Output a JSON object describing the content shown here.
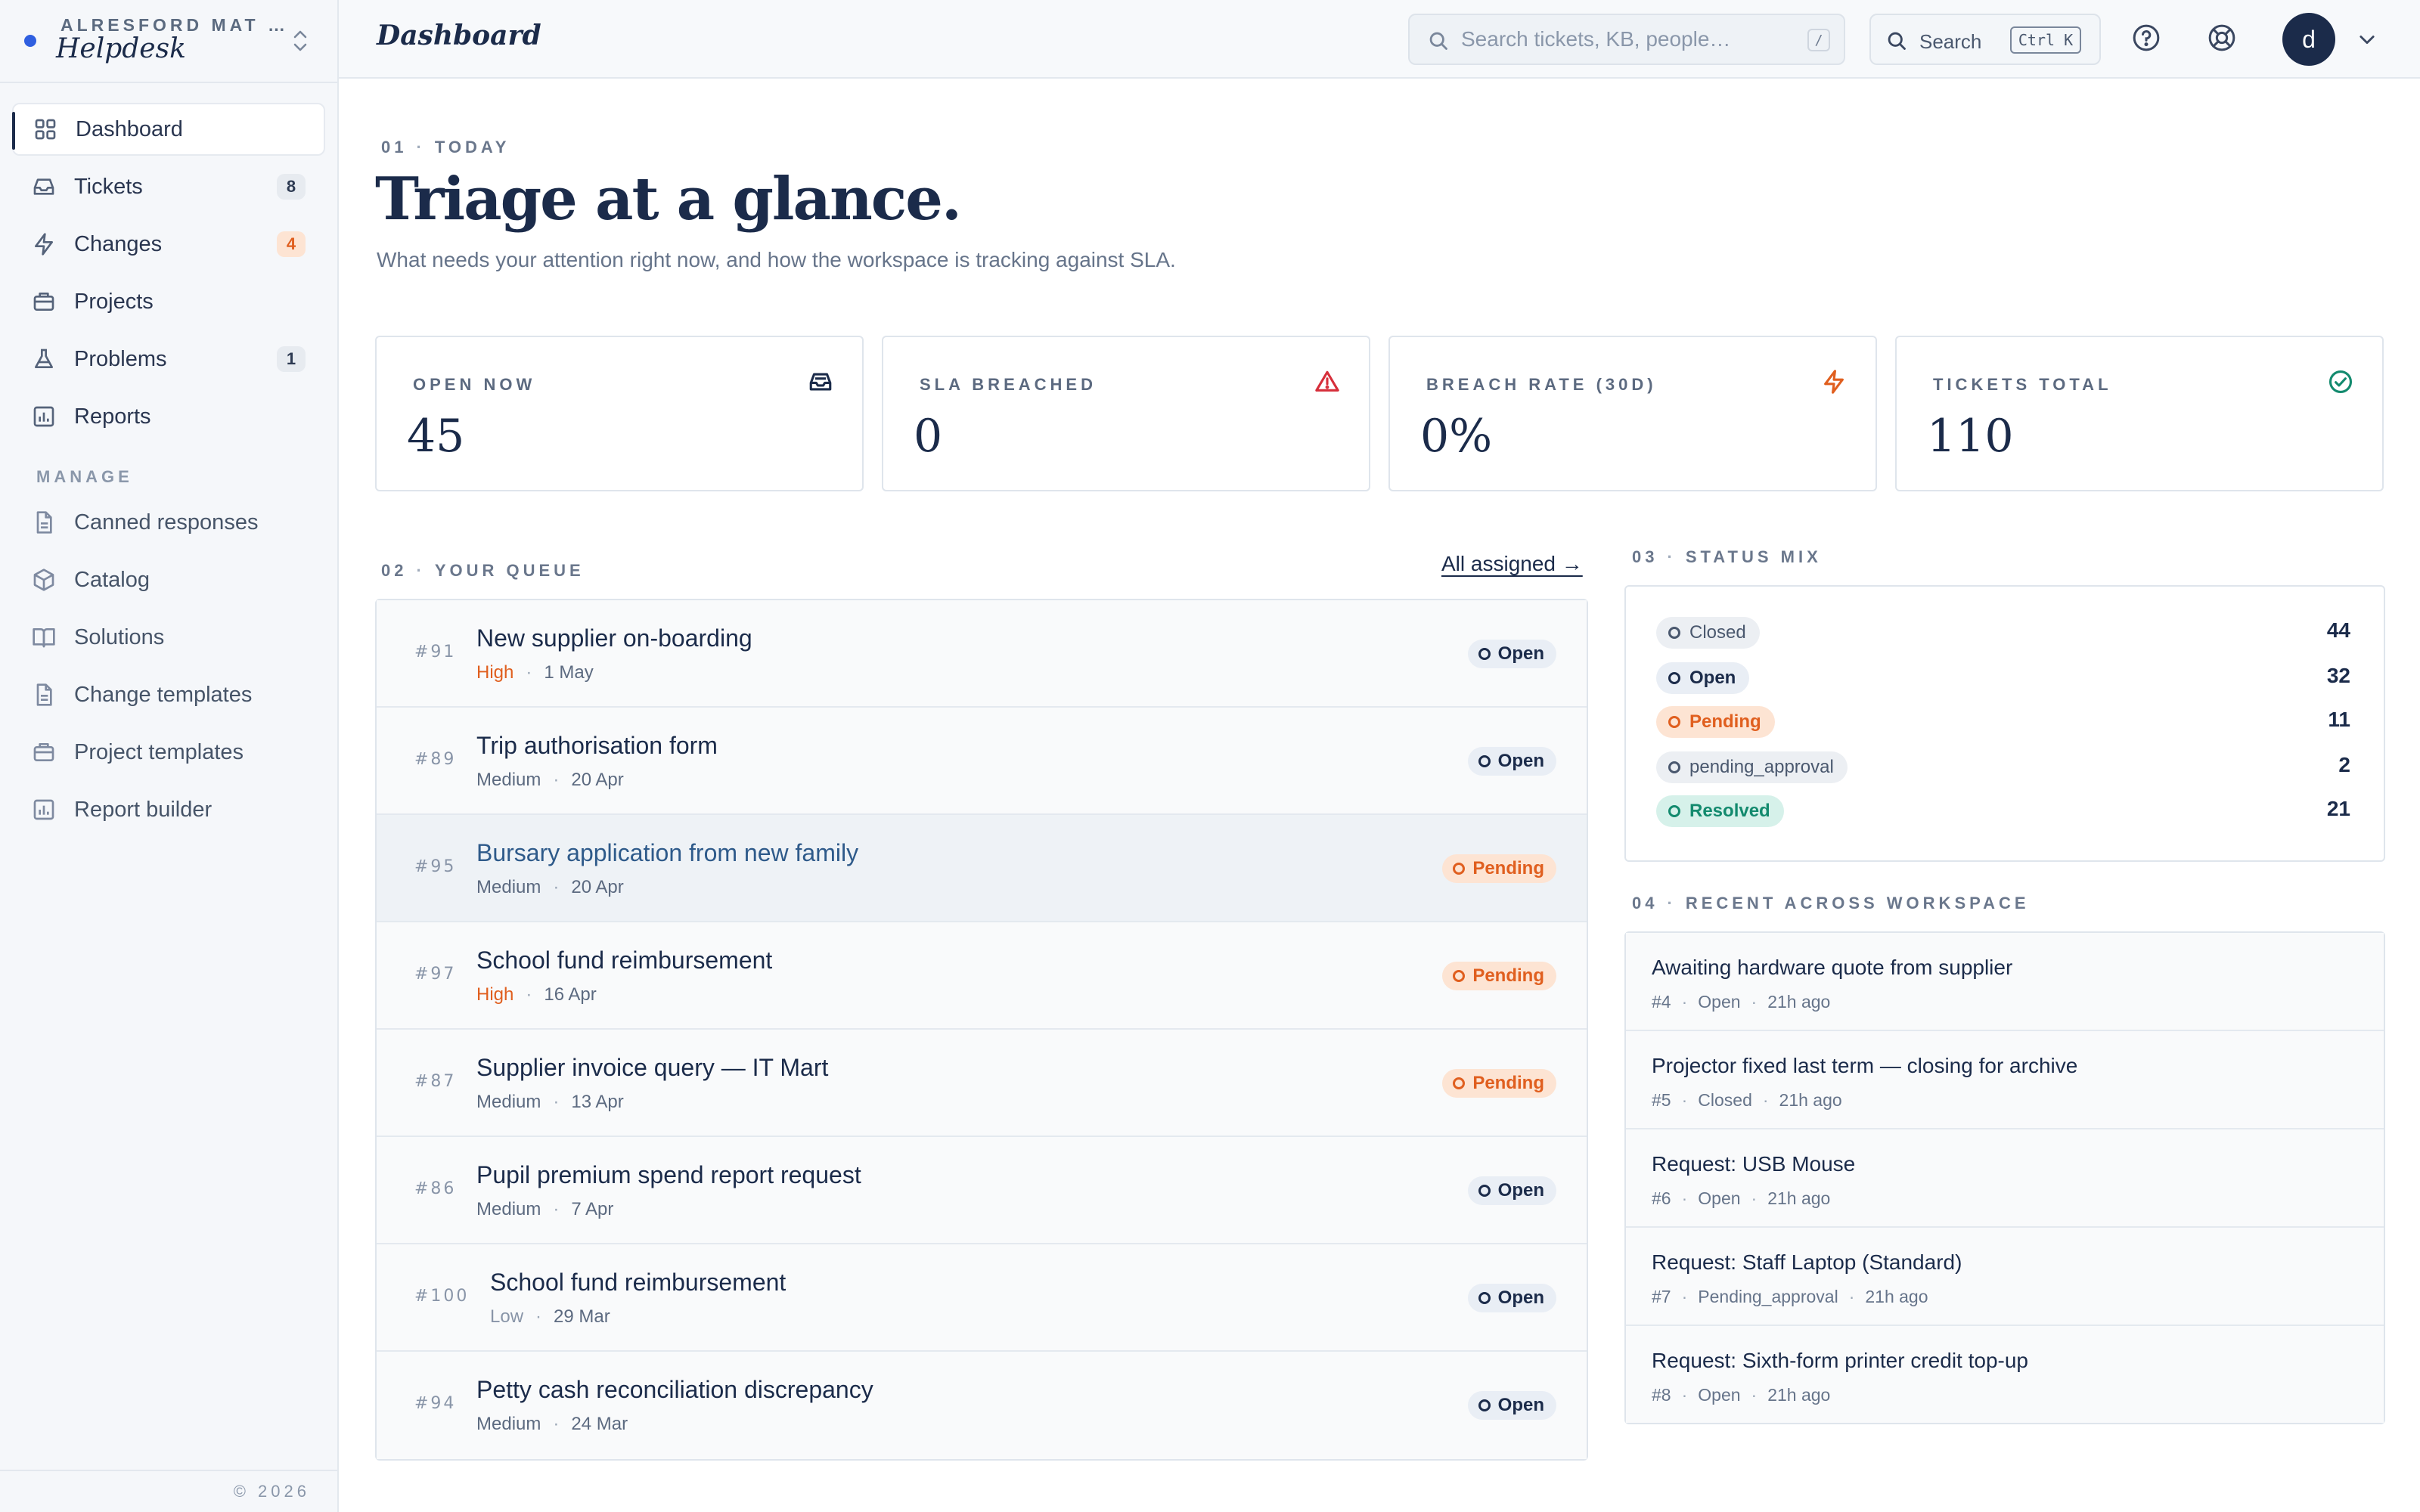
{
  "workspace": {
    "org": "ALRESFORD MAT …",
    "app": "Helpdesk"
  },
  "nav": {
    "items": [
      {
        "label": "Dashboard",
        "badge": "",
        "icon": "grid-icon"
      },
      {
        "label": "Tickets",
        "badge": "8",
        "icon": "inbox-icon"
      },
      {
        "label": "Changes",
        "badge": "4",
        "icon": "bolt-icon"
      },
      {
        "label": "Projects",
        "badge": "",
        "icon": "briefcase-icon"
      },
      {
        "label": "Problems",
        "badge": "1",
        "icon": "flask-icon"
      },
      {
        "label": "Reports",
        "badge": "",
        "icon": "bar-chart-icon"
      }
    ],
    "manage_heading": "MANAGE",
    "manage": [
      {
        "label": "Canned responses",
        "icon": "document-icon"
      },
      {
        "label": "Catalog",
        "icon": "cube-icon"
      },
      {
        "label": "Solutions",
        "icon": "book-icon"
      },
      {
        "label": "Change templates",
        "icon": "document-icon"
      },
      {
        "label": "Project templates",
        "icon": "briefcase-icon"
      },
      {
        "label": "Report builder",
        "icon": "bar-chart-icon"
      }
    ],
    "footer": "© 2026"
  },
  "header": {
    "title": "Dashboard",
    "search_placeholder": "Search tickets, KB, people…",
    "search_shortcut": "/",
    "command_label": "Search",
    "command_shortcut": "Ctrl K",
    "avatar_initial": "d"
  },
  "hero": {
    "eyebrow_num": "01",
    "eyebrow_label": "TODAY",
    "title": "Triage at a glance.",
    "subtitle": "What needs your attention right now, and how the workspace is tracking against SLA."
  },
  "stats": [
    {
      "label": "OPEN NOW",
      "value": "45",
      "icon": "inbox-icon",
      "color": "#1b2b4a"
    },
    {
      "label": "SLA BREACHED",
      "value": "0",
      "icon": "warning-triangle-icon",
      "color": "#d62e3a"
    },
    {
      "label": "BREACH RATE (30D)",
      "value": "0%",
      "icon": "bolt-icon",
      "color": "#e05f1f"
    },
    {
      "label": "TICKETS TOTAL",
      "value": "110",
      "icon": "check-circle-icon",
      "color": "#138a6e"
    }
  ],
  "queue": {
    "eyebrow_num": "02",
    "eyebrow_label": "YOUR QUEUE",
    "all_link": "All assigned →",
    "rows": [
      {
        "id": "#91",
        "title": "New supplier on-boarding",
        "priority": "High",
        "date": "1 May",
        "status": "Open"
      },
      {
        "id": "#89",
        "title": "Trip authorisation form",
        "priority": "Medium",
        "date": "20 Apr",
        "status": "Open"
      },
      {
        "id": "#95",
        "title": "Bursary application from new family",
        "priority": "Medium",
        "date": "20 Apr",
        "status": "Pending"
      },
      {
        "id": "#97",
        "title": "School fund reimbursement",
        "priority": "High",
        "date": "16 Apr",
        "status": "Pending"
      },
      {
        "id": "#87",
        "title": "Supplier invoice query — IT Mart",
        "priority": "Medium",
        "date": "13 Apr",
        "status": "Pending"
      },
      {
        "id": "#86",
        "title": "Pupil premium spend report request",
        "priority": "Medium",
        "date": "7 Apr",
        "status": "Open"
      },
      {
        "id": "#100",
        "title": "School fund reimbursement",
        "priority": "Low",
        "date": "29 Mar",
        "status": "Open"
      },
      {
        "id": "#94",
        "title": "Petty cash reconciliation discrepancy",
        "priority": "Medium",
        "date": "24 Mar",
        "status": "Open"
      }
    ]
  },
  "status_mix": {
    "eyebrow_num": "03",
    "eyebrow_label": "STATUS MIX",
    "rows": [
      {
        "label": "Closed",
        "count": "44",
        "style": "gray"
      },
      {
        "label": "Open",
        "count": "32",
        "style": "blue"
      },
      {
        "label": "Pending",
        "count": "11",
        "style": "orange"
      },
      {
        "label": "pending_approval",
        "count": "2",
        "style": "gray"
      },
      {
        "label": "Resolved",
        "count": "21",
        "style": "teal"
      }
    ]
  },
  "recent": {
    "eyebrow_num": "04",
    "eyebrow_label": "RECENT ACROSS WORKSPACE",
    "rows": [
      {
        "title": "Awaiting hardware quote from supplier",
        "id": "#4",
        "status": "Open",
        "ago": "21h ago"
      },
      {
        "title": "Projector fixed last term — closing for archive",
        "id": "#5",
        "status": "Closed",
        "ago": "21h ago"
      },
      {
        "title": "Request: USB Mouse",
        "id": "#6",
        "status": "Open",
        "ago": "21h ago"
      },
      {
        "title": "Request: Staff Laptop (Standard)",
        "id": "#7",
        "status": "Pending_approval",
        "ago": "21h ago"
      },
      {
        "title": "Request: Sixth-form printer credit top-up",
        "id": "#8",
        "status": "Open",
        "ago": "21h ago"
      }
    ]
  }
}
